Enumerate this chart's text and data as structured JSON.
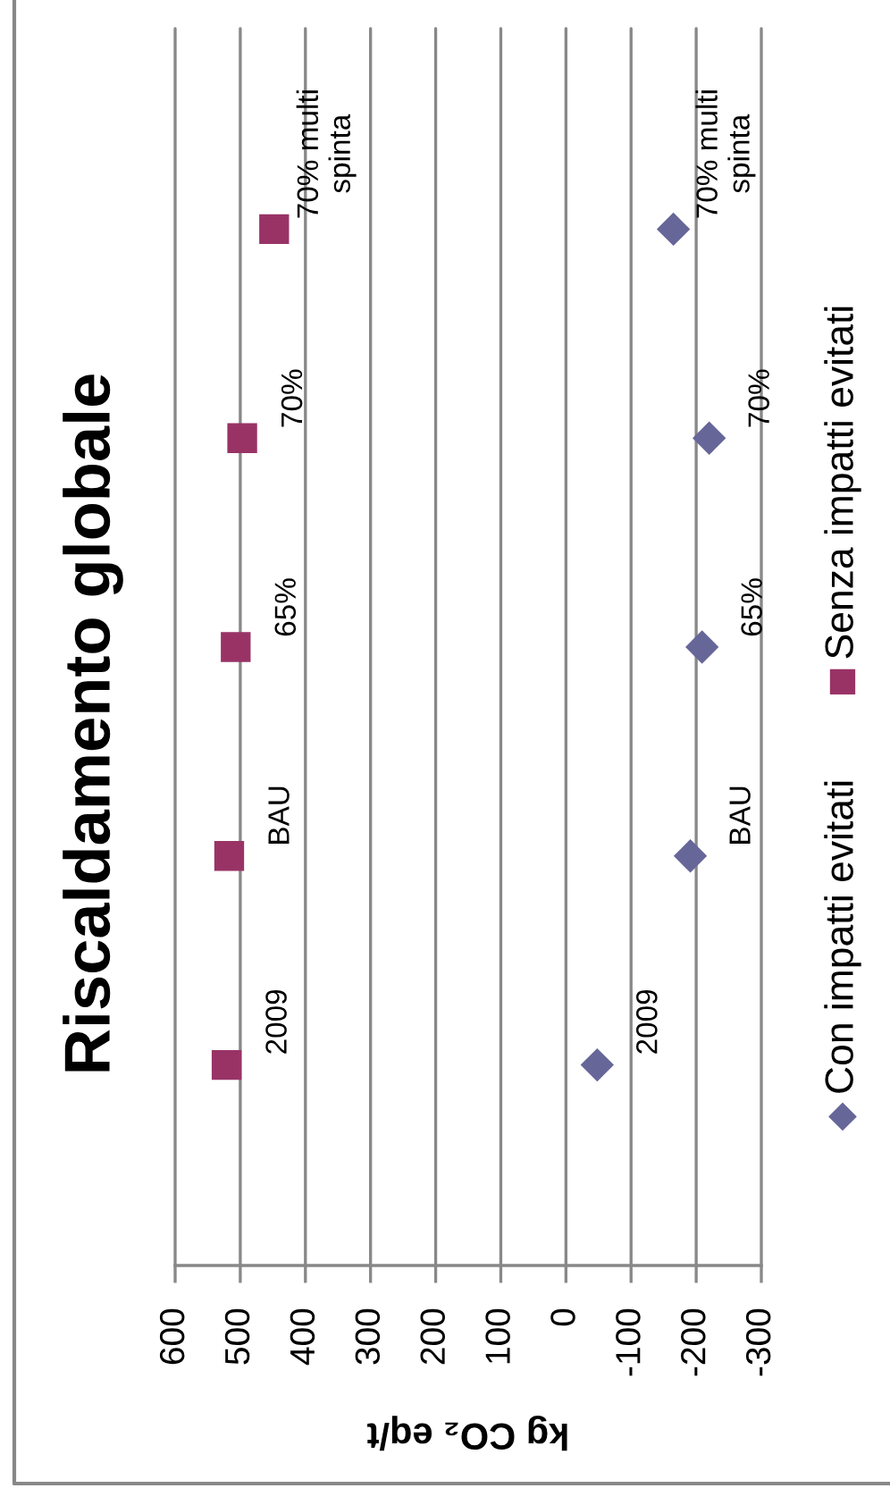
{
  "chart_data": {
    "type": "scatter",
    "title": "Riscaldamento globale",
    "xlabel": "kg CO₂ eq/t",
    "orientation": "horizontal",
    "categories": [
      "70% multi\nspinta",
      "70%",
      "65%",
      "BAU",
      "2009"
    ],
    "series": [
      {
        "name": "Con impatti evitati",
        "color": "#666699",
        "marker": "diamond",
        "values": [
          -165,
          -220,
          -209,
          -191,
          -48
        ]
      },
      {
        "name": "Senza impatti evitati",
        "color": "#993366",
        "marker": "square",
        "values": [
          448,
          497,
          507,
          517,
          521
        ]
      }
    ],
    "xlim": [
      600,
      -300
    ],
    "xticks": [
      600,
      500,
      400,
      300,
      200,
      100,
      0,
      -100,
      -200,
      -300
    ],
    "grid": "x",
    "legend": "right"
  }
}
